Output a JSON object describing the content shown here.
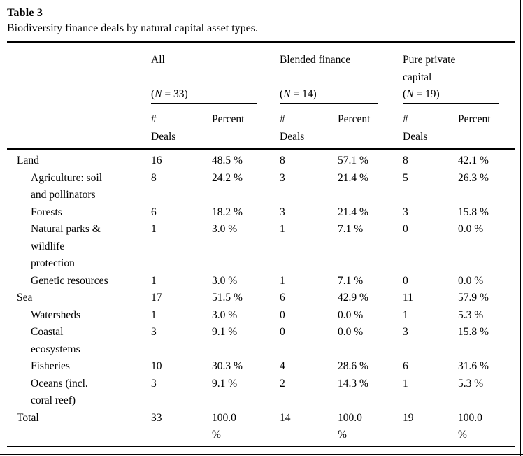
{
  "page": {
    "caption_label": "Table 3",
    "caption_text": "Biodiversity finance deals by natural capital asset types."
  },
  "colors": {
    "text": "#000000",
    "background": "#ffffff",
    "rule": "#000000"
  },
  "table": {
    "groups": [
      {
        "name": "All",
        "n_open": "(",
        "n_var": "N",
        "n_rest": " = 33)"
      },
      {
        "name": "Blended finance",
        "n_open": "(",
        "n_var": "N",
        "n_rest": " = 14)"
      },
      {
        "name": "Pure private\ncapital",
        "n_open": "(",
        "n_var": "N",
        "n_rest": " = 19)"
      }
    ],
    "subheaders": {
      "deals": "#\nDeals",
      "percent": "Percent"
    },
    "rows": [
      {
        "label": "Land",
        "indent": 0,
        "values": [
          "16",
          "48.5 %",
          "8",
          "57.1 %",
          "8",
          "42.1 %"
        ]
      },
      {
        "label": "Agriculture: soil\nand pollinators",
        "indent": 1,
        "values": [
          "8",
          "24.2 %",
          "3",
          "21.4 %",
          "5",
          "26.3 %"
        ]
      },
      {
        "label": "Forests",
        "indent": 1,
        "values": [
          "6",
          "18.2 %",
          "3",
          "21.4 %",
          "3",
          "15.8 %"
        ]
      },
      {
        "label": "Natural parks &\nwildlife\nprotection",
        "indent": 1,
        "values": [
          "1",
          "3.0 %",
          "1",
          "7.1 %",
          "0",
          "0.0 %"
        ]
      },
      {
        "label": "Genetic resources",
        "indent": 1,
        "values": [
          "1",
          "3.0 %",
          "1",
          "7.1 %",
          "0",
          "0.0 %"
        ]
      },
      {
        "label": "Sea",
        "indent": 0,
        "values": [
          "17",
          "51.5 %",
          "6",
          "42.9 %",
          "11",
          "57.9 %"
        ]
      },
      {
        "label": "Watersheds",
        "indent": 1,
        "values": [
          "1",
          "3.0 %",
          "0",
          "0.0 %",
          "1",
          "5.3 %"
        ]
      },
      {
        "label": "Coastal\necosystems",
        "indent": 1,
        "values": [
          "3",
          "9.1 %",
          "0",
          "0.0 %",
          "3",
          "15.8 %"
        ]
      },
      {
        "label": "Fisheries",
        "indent": 1,
        "values": [
          "10",
          "30.3 %",
          "4",
          "28.6 %",
          "6",
          "31.6 %"
        ]
      },
      {
        "label": "Oceans (incl.\ncoral reef)",
        "indent": 1,
        "values": [
          "3",
          "9.1 %",
          "2",
          "14.3 %",
          "1",
          "5.3 %"
        ]
      },
      {
        "label": "Total",
        "indent": 0,
        "values": [
          "33",
          "100.0\n%",
          "14",
          "100.0\n%",
          "19",
          "100.0\n%"
        ]
      }
    ]
  }
}
